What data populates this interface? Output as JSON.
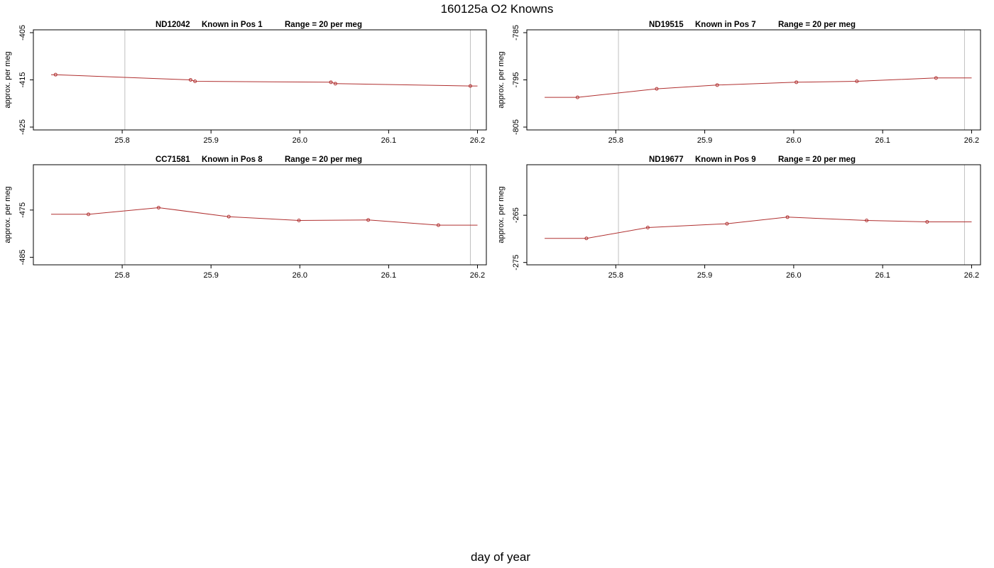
{
  "title": "160125a   O2 Knowns",
  "xlabel": "day of year",
  "colors": {
    "line": "#b03030",
    "point": "#b03030",
    "frame": "#000000",
    "vline": "#c0c0c0"
  },
  "chart_data": [
    {
      "type": "line",
      "title_parts": [
        "ND12042",
        "Known in Pos 1",
        "Range = 20 per meg"
      ],
      "ylabel": "approx. per meg",
      "xlim": [
        25.7,
        26.21
      ],
      "ylim": [
        -425.6,
        -404.4
      ],
      "xticks": [
        25.8,
        25.9,
        26.0,
        26.1,
        26.2
      ],
      "xtick_labels": [
        "25.8",
        "25.9",
        "26.0",
        "26.1",
        "26.2"
      ],
      "yticks": [
        -405,
        -415,
        -425
      ],
      "ytick_labels": [
        "-405",
        "-415",
        "-425"
      ],
      "vlines": [
        25.803,
        26.192
      ],
      "line_x": [
        25.72,
        25.725,
        25.877,
        25.882,
        26.035,
        26.04,
        26.192,
        26.2
      ],
      "line_y": [
        -413.9,
        -413.9,
        -415.0,
        -415.3,
        -415.5,
        -415.8,
        -416.3,
        -416.3
      ],
      "points_x": [
        25.725,
        25.877,
        25.882,
        26.035,
        26.04,
        26.192
      ],
      "points_y": [
        -413.9,
        -415.0,
        -415.3,
        -415.5,
        -415.8,
        -416.3
      ]
    },
    {
      "type": "line",
      "title_parts": [
        "ND19515",
        "Known in Pos 7",
        "Range = 20 per meg"
      ],
      "ylabel": "approx. per meg",
      "xlim": [
        25.7,
        26.21
      ],
      "ylim": [
        -805.6,
        -784.4
      ],
      "xticks": [
        25.8,
        25.9,
        26.0,
        26.1,
        26.2
      ],
      "xtick_labels": [
        "25.8",
        "25.9",
        "26.0",
        "26.1",
        "26.2"
      ],
      "yticks": [
        -785,
        -795,
        -805
      ],
      "ytick_labels": [
        "-785",
        "-795",
        "-805"
      ],
      "vlines": [
        25.803,
        26.192
      ],
      "line_x": [
        25.72,
        25.757,
        25.846,
        25.914,
        26.003,
        26.071,
        26.16,
        26.2
      ],
      "line_y": [
        -798.7,
        -798.7,
        -796.9,
        -796.1,
        -795.5,
        -795.3,
        -794.6,
        -794.6
      ],
      "points_x": [
        25.757,
        25.846,
        25.914,
        26.003,
        26.071,
        26.16
      ],
      "points_y": [
        -798.7,
        -796.9,
        -796.1,
        -795.5,
        -795.3,
        -794.6
      ]
    },
    {
      "type": "line",
      "title_parts": [
        "CC71581",
        "Known in Pos 8",
        "Range = 20 per meg"
      ],
      "ylabel": "approx. per meg",
      "xlim": [
        25.7,
        26.21
      ],
      "ylim": [
        -486.6,
        -465.4
      ],
      "xticks": [
        25.8,
        25.9,
        26.0,
        26.1,
        26.2
      ],
      "xtick_labels": [
        "25.8",
        "25.9",
        "26.0",
        "26.1",
        "26.2"
      ],
      "yticks": [
        -475,
        -485
      ],
      "ytick_labels": [
        "-475",
        "-485"
      ],
      "vlines": [
        25.803,
        26.192
      ],
      "line_x": [
        25.72,
        25.762,
        25.841,
        25.92,
        25.999,
        26.077,
        26.156,
        26.2
      ],
      "line_y": [
        -475.9,
        -475.9,
        -474.5,
        -476.4,
        -477.2,
        -477.1,
        -478.2,
        -478.2
      ],
      "points_x": [
        25.762,
        25.841,
        25.92,
        25.999,
        26.077,
        26.156
      ],
      "points_y": [
        -475.9,
        -474.5,
        -476.4,
        -477.2,
        -477.1,
        -478.2
      ]
    },
    {
      "type": "line",
      "title_parts": [
        "ND19677",
        "Known in Pos 9",
        "Range = 20 per meg"
      ],
      "ylabel": "approx. per meg",
      "xlim": [
        25.7,
        26.21
      ],
      "ylim": [
        -275.5,
        -254.3
      ],
      "xticks": [
        25.8,
        25.9,
        26.0,
        26.1,
        26.2
      ],
      "xtick_labels": [
        "25.8",
        "25.9",
        "26.0",
        "26.1",
        "26.2"
      ],
      "yticks": [
        -265,
        -275
      ],
      "ytick_labels": [
        "-265",
        "-275"
      ],
      "vlines": [
        25.803,
        26.192
      ],
      "line_x": [
        25.72,
        25.767,
        25.836,
        25.925,
        25.993,
        26.082,
        26.15,
        26.2
      ],
      "line_y": [
        -269.9,
        -269.9,
        -267.6,
        -266.8,
        -265.4,
        -266.1,
        -266.4,
        -266.4
      ],
      "points_x": [
        25.767,
        25.836,
        25.925,
        25.993,
        26.082,
        26.15
      ],
      "points_y": [
        -269.9,
        -267.6,
        -266.8,
        -265.4,
        -266.1,
        -266.4
      ]
    }
  ]
}
